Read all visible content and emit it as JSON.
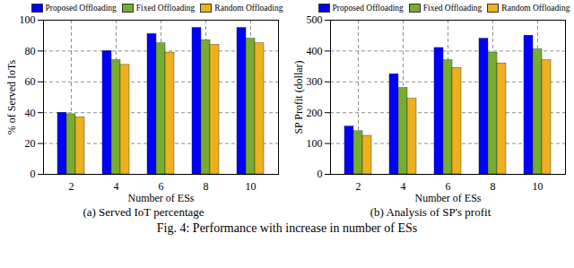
{
  "chart_data": [
    {
      "type": "bar",
      "title": "(a) Served IoT percentage",
      "x_label": "Number of ESs",
      "y_label": "% of Served IoTs",
      "categories": [
        "2",
        "4",
        "6",
        "8",
        "10"
      ],
      "series": [
        {
          "name": "Proposed Offloading",
          "color": "#0000ff",
          "values": [
            40,
            80,
            91,
            95,
            95
          ]
        },
        {
          "name": "Fixed Offloading",
          "color": "#77ac30",
          "values": [
            39,
            74,
            85,
            87,
            88
          ]
        },
        {
          "name": "Random Offloading",
          "color": "#edb120",
          "values": [
            37,
            71,
            79,
            84,
            85
          ]
        }
      ],
      "ylim": [
        0,
        100
      ],
      "yticks": [
        0,
        20,
        40,
        60,
        80,
        100
      ],
      "grid": true,
      "legend": "top"
    },
    {
      "type": "bar",
      "title": "(b) Analysis of SP's profit",
      "x_label": "Number of ESs",
      "y_label": "SP Profit (dollar)",
      "categories": [
        "2",
        "4",
        "6",
        "8",
        "10"
      ],
      "series": [
        {
          "name": "Proposed Offloading",
          "color": "#0000ff",
          "values": [
            155,
            325,
            410,
            440,
            450
          ]
        },
        {
          "name": "Fixed Offloading",
          "color": "#77ac30",
          "values": [
            140,
            280,
            370,
            395,
            405
          ]
        },
        {
          "name": "Random Offloading",
          "color": "#edb120",
          "values": [
            125,
            245,
            345,
            360,
            370
          ]
        }
      ],
      "ylim": [
        0,
        500
      ],
      "yticks": [
        0,
        100,
        200,
        300,
        400,
        500
      ],
      "grid": true,
      "legend": "top"
    }
  ],
  "caption": "Fig. 4: Performance with increase in number of ESs"
}
